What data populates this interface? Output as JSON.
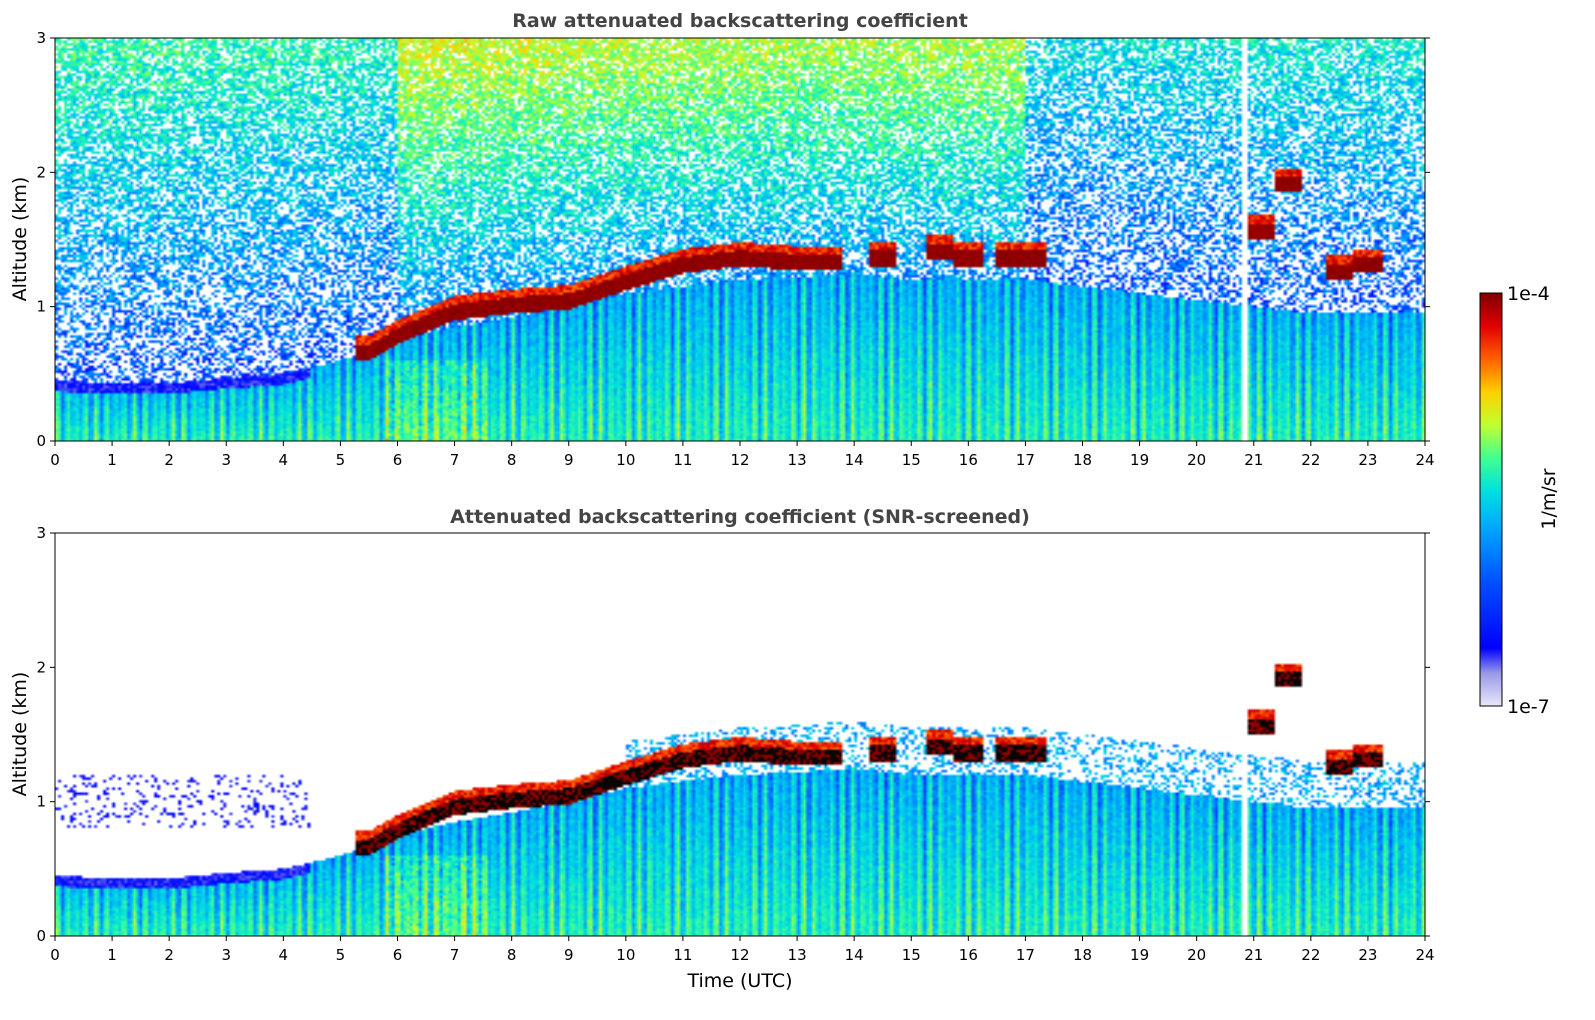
{
  "chart_data": [
    {
      "type": "heatmap",
      "title": "Raw attenuated backscattering coefficient",
      "xlabel": "",
      "ylabel": "Altitude (km)",
      "xlim": [
        0,
        24
      ],
      "ylim": [
        0,
        3
      ],
      "x_ticks": [
        "0",
        "1",
        "2",
        "3",
        "4",
        "5",
        "6",
        "7",
        "8",
        "9",
        "10",
        "11",
        "12",
        "13",
        "14",
        "15",
        "16",
        "17",
        "18",
        "19",
        "20",
        "21",
        "22",
        "23",
        "24"
      ],
      "y_ticks": [
        "0",
        "1",
        "2",
        "3"
      ],
      "screened": false,
      "features": {
        "boundary_layer_top_km": [
          [
            0,
            0.45
          ],
          [
            1,
            0.43
          ],
          [
            2,
            0.43
          ],
          [
            3,
            0.47
          ],
          [
            4,
            0.5
          ],
          [
            5,
            0.6
          ],
          [
            6,
            0.75
          ],
          [
            7,
            0.85
          ],
          [
            8,
            0.92
          ],
          [
            9,
            1.0
          ],
          [
            10,
            1.1
          ],
          [
            11,
            1.15
          ],
          [
            12,
            1.2
          ],
          [
            13,
            1.22
          ],
          [
            14,
            1.25
          ],
          [
            15,
            1.2
          ],
          [
            16,
            1.2
          ],
          [
            17,
            1.2
          ],
          [
            18,
            1.15
          ],
          [
            19,
            1.1
          ],
          [
            20,
            1.05
          ],
          [
            21,
            1.0
          ],
          [
            22,
            0.95
          ],
          [
            23,
            0.95
          ],
          [
            24,
            0.95
          ]
        ],
        "cloud_base_km": [
          [
            5.5,
            0.6
          ],
          [
            6,
            0.72
          ],
          [
            7,
            0.9
          ],
          [
            8,
            0.95
          ],
          [
            9,
            0.98
          ],
          [
            10,
            1.12
          ],
          [
            11,
            1.25
          ],
          [
            12,
            1.3
          ],
          [
            13,
            1.27
          ],
          [
            14.5,
            1.3
          ],
          [
            15.5,
            1.35
          ],
          [
            16,
            1.3
          ],
          [
            16.7,
            1.3
          ],
          [
            17.1,
            1.3
          ],
          [
            21.1,
            1.5
          ],
          [
            21.6,
            1.85
          ],
          [
            22.5,
            1.2
          ],
          [
            23,
            1.25
          ]
        ],
        "gap_time_h": 20.85
      }
    },
    {
      "type": "heatmap",
      "title": "Attenuated backscattering coefficient (SNR-screened)",
      "xlabel": "Time (UTC)",
      "ylabel": "Altitude (km)",
      "xlim": [
        0,
        24
      ],
      "ylim": [
        0,
        3
      ],
      "x_ticks": [
        "0",
        "1",
        "2",
        "3",
        "4",
        "5",
        "6",
        "7",
        "8",
        "9",
        "10",
        "11",
        "12",
        "13",
        "14",
        "15",
        "16",
        "17",
        "18",
        "19",
        "20",
        "21",
        "22",
        "23",
        "24"
      ],
      "y_ticks": [
        "0",
        "1",
        "2",
        "3"
      ],
      "screened": true
    }
  ],
  "colorbar": {
    "label": "1/m/sr",
    "max_label": "1e-4",
    "min_label": "1e-7",
    "scale": "log",
    "colormap": "jet",
    "colors": [
      "#e8e8f8",
      "#9898e8",
      "#0000ff",
      "#0050ff",
      "#00a0ff",
      "#00e0e0",
      "#40ff90",
      "#c0ff30",
      "#ffd000",
      "#ff6000",
      "#e00000",
      "#800000"
    ]
  }
}
